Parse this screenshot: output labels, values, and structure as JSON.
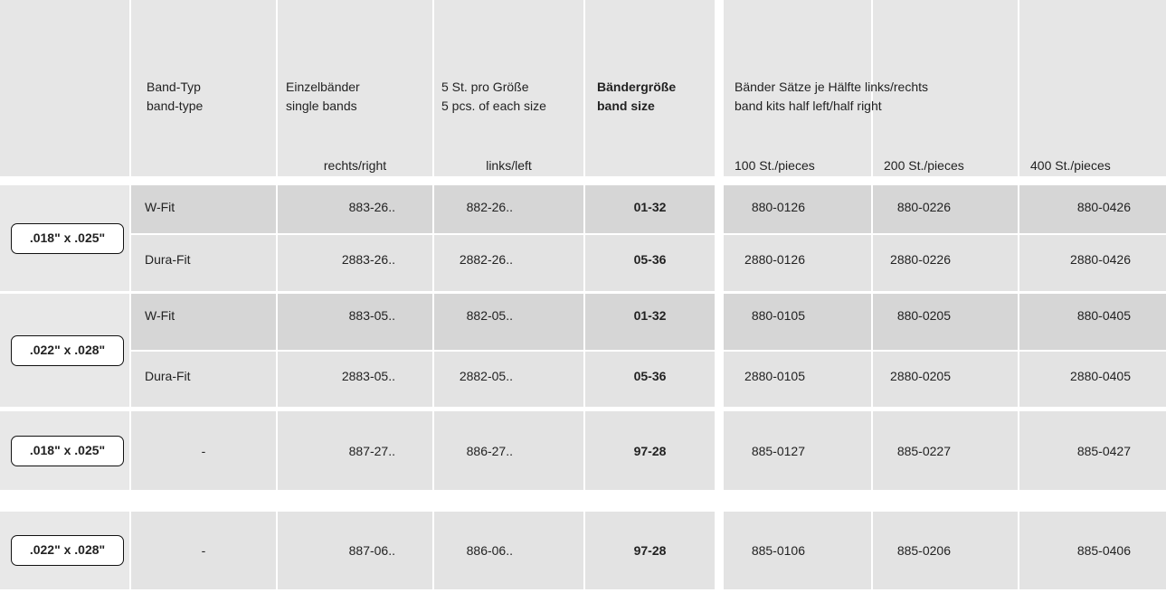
{
  "header": {
    "band_type": [
      "Band-Typ",
      "band-type"
    ],
    "single": [
      "Einzelbänder",
      "single bands"
    ],
    "five": [
      "5 St. pro Größe",
      "5 pcs. of each size"
    ],
    "size": [
      "Bändergröße",
      "band size"
    ],
    "kits": [
      "Bänder Sätze je Hälfte links/rechts",
      "band kits half left/half right"
    ],
    "sub": [
      "rechts/right",
      "links/left",
      "100 St./pieces",
      "200 St./pieces",
      "400 St./pieces"
    ]
  },
  "groups": [
    {
      "label": ".018\" x .025\"",
      "rows": [
        [
          "W-Fit",
          "883-26..",
          "882-26..",
          "01-32",
          "880-0126",
          "880-0226",
          "880-0426"
        ],
        [
          "Dura-Fit",
          "2883-26..",
          "2882-26..",
          "05-36",
          "2880-0126",
          "2880-0226",
          "2880-0426"
        ]
      ]
    },
    {
      "label": ".022\" x .028\"",
      "rows": [
        [
          "W-Fit",
          "883-05..",
          "882-05..",
          "01-32",
          "880-0105",
          "880-0205",
          "880-0405"
        ],
        [
          "Dura-Fit",
          "2883-05..",
          "2882-05..",
          "05-36",
          "2880-0105",
          "2880-0205",
          "2880-0405"
        ]
      ]
    },
    {
      "label": ".018\" x .025\"",
      "rows": [
        [
          "-",
          "887-27..",
          "886-27..",
          "97-28",
          "885-0127",
          "885-0227",
          "885-0427"
        ]
      ]
    },
    {
      "label": ".022\" x .028\"",
      "rows": [
        [
          "-",
          "887-06..",
          "886-06..",
          "97-28",
          "885-0106",
          "885-0206",
          "885-0406"
        ]
      ]
    }
  ]
}
